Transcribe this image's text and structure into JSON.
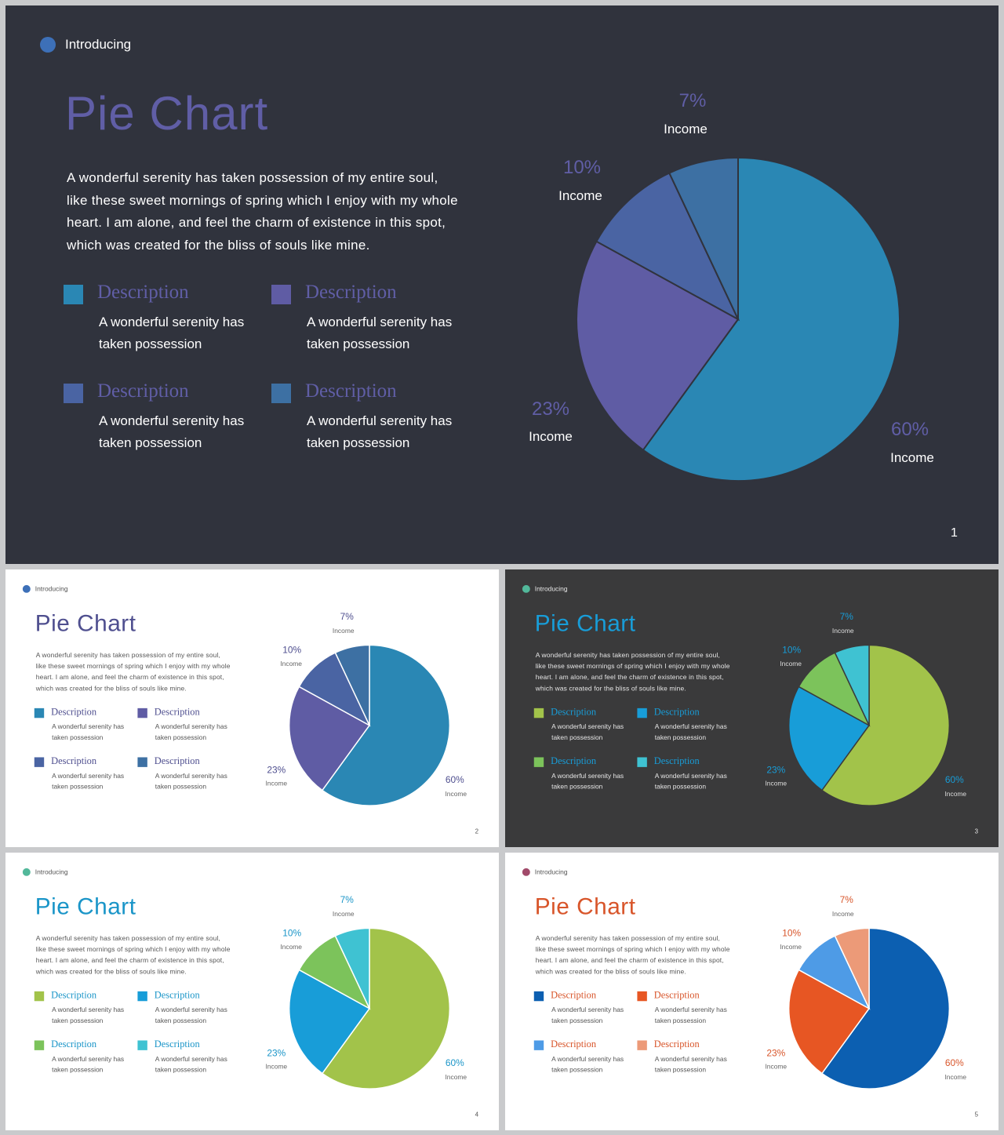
{
  "chart_data": [
    {
      "type": "pie",
      "title": "Pie Chart",
      "slices": [
        {
          "label": "Income",
          "value": 60,
          "display": "60%"
        },
        {
          "label": "Income",
          "value": 23,
          "display": "23%"
        },
        {
          "label": "Income",
          "value": 10,
          "display": "10%"
        },
        {
          "label": "Income",
          "value": 7,
          "display": "7%"
        }
      ],
      "colors": [
        "#2a87b4",
        "#5f5ca4",
        "#4a64a3",
        "#3d70a3"
      ]
    },
    {
      "type": "pie",
      "title": "Pie Chart",
      "slices": [
        {
          "label": "Income",
          "value": 60,
          "display": "60%"
        },
        {
          "label": "Income",
          "value": 23,
          "display": "23%"
        },
        {
          "label": "Income",
          "value": 10,
          "display": "10%"
        },
        {
          "label": "Income",
          "value": 7,
          "display": "7%"
        }
      ],
      "colors": [
        "#2a87b4",
        "#5f5ca4",
        "#4a64a3",
        "#3d70a3"
      ]
    },
    {
      "type": "pie",
      "title": "Pie Chart",
      "slices": [
        {
          "label": "Income",
          "value": 60,
          "display": "60%"
        },
        {
          "label": "Income",
          "value": 23,
          "display": "23%"
        },
        {
          "label": "Income",
          "value": 10,
          "display": "10%"
        },
        {
          "label": "Income",
          "value": 7,
          "display": "7%"
        }
      ],
      "colors": [
        "#a2c34a",
        "#189dd8",
        "#7cc35b",
        "#3fc2d2"
      ]
    },
    {
      "type": "pie",
      "title": "Pie Chart",
      "slices": [
        {
          "label": "Income",
          "value": 60,
          "display": "60%"
        },
        {
          "label": "Income",
          "value": 23,
          "display": "23%"
        },
        {
          "label": "Income",
          "value": 10,
          "display": "10%"
        },
        {
          "label": "Income",
          "value": 7,
          "display": "7%"
        }
      ],
      "colors": [
        "#a2c34a",
        "#189dd8",
        "#7cc35b",
        "#3fc2d2"
      ]
    },
    {
      "type": "pie",
      "title": "Pie Chart",
      "slices": [
        {
          "label": "Income",
          "value": 60,
          "display": "60%"
        },
        {
          "label": "Income",
          "value": 23,
          "display": "23%"
        },
        {
          "label": "Income",
          "value": 10,
          "display": "10%"
        },
        {
          "label": "Income",
          "value": 7,
          "display": "7%"
        }
      ],
      "colors": [
        "#0c5fb1",
        "#e75623",
        "#4e9be6",
        "#ec9a78"
      ]
    }
  ],
  "slides": [
    {
      "intro": "Introducing",
      "title": "Pie Chart",
      "body": "A wonderful  serenity has taken possession of my entire soul, like these sweet mornings  of spring which  I enjoy with my whole heart. I am alone, and feel the charm of existence in this spot, which  was created for the bliss of souls like mine.",
      "descriptions": [
        {
          "title": "Description",
          "text": "A wonderful  serenity has taken possession",
          "color": "#2a87b4"
        },
        {
          "title": "Description",
          "text": "A wonderful  serenity has taken possession",
          "color": "#5f5ca4"
        },
        {
          "title": "Description",
          "text": "A wonderful  serenity has taken possession",
          "color": "#4a64a3"
        },
        {
          "title": "Description",
          "text": "A wonderful  serenity has taken possession",
          "color": "#3d70a3"
        }
      ],
      "page": "1",
      "theme": {
        "bg": "#30333d",
        "title": "#605ea6",
        "accent": "#605ea6",
        "text": "#ffffff",
        "pct": "#605ea6",
        "lbl": "#ffffff",
        "dot": "#3d70b8",
        "border": "#30333d"
      }
    },
    {
      "intro": "Introducing",
      "title": "Pie Chart",
      "body": "A wonderful  serenity has taken possession of my entire soul, like these sweet mornings  of spring which  I enjoy with my whole heart. I am alone, and feel the charm of existence in this spot, which  was created for the bliss of souls like mine.",
      "descriptions": [
        {
          "title": "Description",
          "text": "A wonderful  serenity has taken possession",
          "color": "#2a87b4"
        },
        {
          "title": "Description",
          "text": "A wonderful  serenity has taken possession",
          "color": "#5f5ca4"
        },
        {
          "title": "Description",
          "text": "A wonderful  serenity has taken possession",
          "color": "#4a64a3"
        },
        {
          "title": "Description",
          "text": "A wonderful  serenity has taken possession",
          "color": "#3d70a3"
        }
      ],
      "page": "2",
      "theme": {
        "bg": "#ffffff",
        "title": "#4f4f8f",
        "accent": "#4f4f8f",
        "text": "#555555",
        "pct": "#4f4f8f",
        "lbl": "#666666",
        "dot": "#3d70b8",
        "border": "#ffffff"
      }
    },
    {
      "intro": "Introducing",
      "title": "Pie Chart",
      "body": "A wonderful  serenity has taken possession of my entire soul, like these sweet mornings  of spring which  I enjoy with my whole heart. I am alone, and feel the charm of existence in this spot, which  was created for the bliss of souls like mine.",
      "descriptions": [
        {
          "title": "Description",
          "text": "A wonderful  serenity has taken possession",
          "color": "#a2c34a"
        },
        {
          "title": "Description",
          "text": "A wonderful  serenity has taken possession",
          "color": "#189dd8"
        },
        {
          "title": "Description",
          "text": "A wonderful  serenity has taken possession",
          "color": "#7cc35b"
        },
        {
          "title": "Description",
          "text": "A wonderful  serenity has taken possession",
          "color": "#3fc2d2"
        }
      ],
      "page": "3",
      "theme": {
        "bg": "#3a3a3b",
        "title": "#189dd8",
        "accent": "#189dd8",
        "text": "#e6e6e6",
        "pct": "#189dd8",
        "lbl": "#dddddd",
        "dot": "#52b89a",
        "border": "#3a3a3b"
      }
    },
    {
      "intro": "Introducing",
      "title": "Pie Chart",
      "body": "A wonderful  serenity has taken possession of my entire soul, like these sweet mornings  of spring which  I enjoy with my whole heart. I am alone, and feel the charm of existence in this spot, which  was created for the bliss of souls like mine.",
      "descriptions": [
        {
          "title": "Description",
          "text": "A wonderful  serenity has taken possession",
          "color": "#a2c34a"
        },
        {
          "title": "Description",
          "text": "A wonderful  serenity has taken possession",
          "color": "#189dd8"
        },
        {
          "title": "Description",
          "text": "A wonderful  serenity has taken possession",
          "color": "#7cc35b"
        },
        {
          "title": "Description",
          "text": "A wonderful  serenity has taken possession",
          "color": "#3fc2d2"
        }
      ],
      "page": "4",
      "theme": {
        "bg": "#ffffff",
        "title": "#1a95c8",
        "accent": "#1a95c8",
        "text": "#555555",
        "pct": "#1a95c8",
        "lbl": "#666666",
        "dot": "#52b89a",
        "border": "#ffffff"
      }
    },
    {
      "intro": "Introducing",
      "title": "Pie Chart",
      "body": "A wonderful  serenity has taken possession of my entire soul, like these sweet mornings  of spring which  I enjoy with my whole heart. I am alone, and feel the charm of existence in this spot, which  was created for the bliss of souls like mine.",
      "descriptions": [
        {
          "title": "Description",
          "text": "A wonderful  serenity has taken possession",
          "color": "#0c5fb1"
        },
        {
          "title": "Description",
          "text": "A wonderful  serenity has taken possession",
          "color": "#e75623"
        },
        {
          "title": "Description",
          "text": "A wonderful  serenity has taken possession",
          "color": "#4e9be6"
        },
        {
          "title": "Description",
          "text": "A wonderful  serenity has taken possession",
          "color": "#ec9a78"
        }
      ],
      "page": "5",
      "theme": {
        "bg": "#ffffff",
        "title": "#d8552a",
        "accent": "#d8552a",
        "text": "#555555",
        "pct": "#d8552a",
        "lbl": "#666666",
        "dot": "#a14a6a",
        "border": "#ffffff"
      }
    }
  ]
}
